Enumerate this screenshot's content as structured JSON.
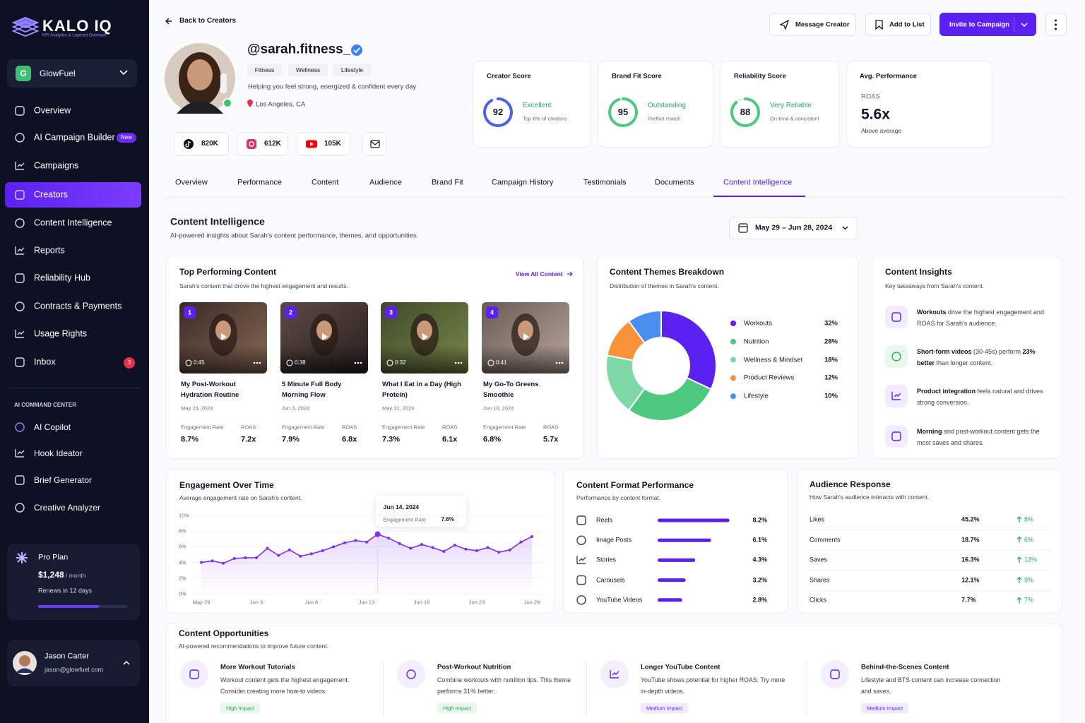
{
  "sidebar": {
    "brand": "KALO IQ",
    "tagline": "KPI Analytics & Layered Outreach",
    "workspace": {
      "initial": "G",
      "name": "GlowFuel"
    },
    "nav": [
      {
        "label": "Overview"
      },
      {
        "label": "AI Campaign Builder",
        "badge": "New"
      },
      {
        "label": "Campaigns"
      },
      {
        "label": "Creators",
        "active": true
      },
      {
        "label": "Content Intelligence"
      },
      {
        "label": "Reports"
      },
      {
        "label": "Reliability Hub"
      },
      {
        "label": "Contracts & Payments"
      },
      {
        "label": "Usage Rights"
      },
      {
        "label": "Inbox",
        "count": 3
      }
    ],
    "section_title": "AI COMMAND CENTER",
    "tools": [
      "AI Copilot",
      "Hook Ideator",
      "Brief Generator",
      "Creative Analyzer"
    ],
    "plan": {
      "name": "Pro Plan",
      "price": "$1,248",
      "period": "/ month",
      "renews": "Renews in 12 days"
    },
    "user": {
      "name": "Jason Carter",
      "email": "jason@glowfuel.com"
    }
  },
  "header": {
    "back": "Back to Creators",
    "message": "Message Creator",
    "add": "Add to List",
    "invite": "Invite to Campaign"
  },
  "profile": {
    "handle": "@sarah.fitness_",
    "tags": [
      "Fitness",
      "Wellness",
      "Lifestyle"
    ],
    "bio": "Helping you feel strong, energized & confident every day",
    "location": "Los Angeles, CA",
    "followers": [
      "820K",
      "612K",
      "105K"
    ]
  },
  "scores": [
    {
      "title": "Creator Score",
      "value": 92,
      "label": "Excellent",
      "note": "Top 8% of creators",
      "color": "#4b63e8"
    },
    {
      "title": "Brand Fit Score",
      "value": 95,
      "label": "Outstanding",
      "note": "Perfect match",
      "color": "#4cc97f"
    },
    {
      "title": "Reliability Score",
      "value": 88,
      "label": "Very Reliable",
      "note": "On-time & consistent",
      "color": "#4cc97f"
    }
  ],
  "avg_performance": {
    "title": "Avg. Performance",
    "metric": "ROAS",
    "value": "5.6x",
    "note": "Above average"
  },
  "tabs": {
    "items": [
      "Overview",
      "Performance",
      "Content",
      "Audience",
      "Brand Fit",
      "Campaign History",
      "Testimonials",
      "Documents",
      "Content Intelligence"
    ],
    "active": 8
  },
  "section": {
    "title": "Content Intelligence",
    "subtitle": "AI-powered insights about Sarah's content performance, themes, and opportunities.",
    "date_range": "May 29 – Jun 28, 2024"
  },
  "top_content": {
    "title": "Top Performing Content",
    "subtitle": "Sarah's content that drove the highest engagement and results.",
    "link": "View All Content",
    "metric_labels": [
      "Engagement Rate",
      "ROAS"
    ],
    "items": [
      {
        "rank": 1,
        "duration": "0:45",
        "title": "My Post-Workout Hydration Routine",
        "date": "May 24, 2024",
        "engagement": "8.7%",
        "roas": "7.2x"
      },
      {
        "rank": 2,
        "duration": "0:38",
        "title": "5 Minute Full Body Morning Flow",
        "date": "Jun 3, 2024",
        "engagement": "7.9%",
        "roas": "6.8x"
      },
      {
        "rank": 3,
        "duration": "0:32",
        "title": "What I Eat in a Day (High Protein)",
        "date": "May 31, 2024",
        "engagement": "7.3%",
        "roas": "6.1x"
      },
      {
        "rank": 4,
        "duration": "0:41",
        "title": "My Go-To Greens Smoothie",
        "date": "Jun 10, 2024",
        "engagement": "6.8%",
        "roas": "5.7x"
      }
    ]
  },
  "themes": {
    "type": "pie",
    "title": "Content Themes Breakdown",
    "subtitle": "Distribution of themes in Sarah's content.",
    "categories": [
      "Workouts",
      "Nutrition",
      "Wellness & Mindset",
      "Product Reviews",
      "Lifestyle"
    ],
    "values": [
      32,
      28,
      18,
      12,
      10
    ],
    "value_labels": [
      "32%",
      "28%",
      "18%",
      "12%",
      "10%"
    ],
    "colors": [
      "#5b21f0",
      "#4cc97f",
      "#7fd8a8",
      "#f7923a",
      "#4a8ff0"
    ]
  },
  "insights": {
    "title": "Content Insights",
    "subtitle": "Key takeaways from Sarah's content.",
    "items": [
      [
        "Workouts",
        " drive the highest engagement and ROAS for Sarah's audience."
      ],
      [
        "Short-form videos",
        " (30-45s) perform ",
        "23% better",
        " than longer content."
      ],
      [
        "Product integration",
        " feels natural and drives strong conversion."
      ],
      [
        "Morning",
        " and post-workout content gets the most saves and shares."
      ]
    ]
  },
  "engagement": {
    "type": "line",
    "title": "Engagement Over Time",
    "subtitle": "Average engagement rate on Sarah's content.",
    "color": "#7b2ff0",
    "categories": [
      "May 29",
      null,
      null,
      null,
      null,
      "Jun 3",
      null,
      null,
      null,
      null,
      "Jun 8",
      null,
      null,
      null,
      null,
      "Jun 13",
      null,
      null,
      null,
      null,
      "Jun 18",
      null,
      null,
      null,
      null,
      "Jun 23",
      null,
      null,
      null,
      null,
      "Jun 28"
    ],
    "values": [
      4.0,
      4.2,
      3.9,
      4.5,
      4.6,
      4.6,
      5.8,
      4.9,
      5.6,
      4.8,
      5.1,
      5.5,
      6.0,
      6.5,
      6.8,
      6.6,
      7.6,
      7.1,
      6.4,
      5.8,
      6.3,
      5.9,
      5.4,
      6.2,
      5.7,
      5.5,
      5.9,
      5.3,
      5.6,
      6.6,
      7.3
    ],
    "ylim": [
      0,
      10
    ],
    "yticks": [
      {
        "value": 0,
        "label": "0%"
      },
      {
        "value": 2,
        "label": "2%"
      },
      {
        "value": 4,
        "label": "4%"
      },
      {
        "value": 6,
        "label": "6%"
      },
      {
        "value": 8,
        "label": "8%"
      },
      {
        "value": 10,
        "label": "10%"
      }
    ],
    "highlight": 16,
    "tooltip": {
      "date": "Jun 14, 2024",
      "label": "Engagement Rate",
      "value_label": "7.6%"
    }
  },
  "formats": {
    "type": "bar",
    "title": "Content Format Performance",
    "subtitle": "Performance by content format.",
    "categories": [
      "Reels",
      "Image Posts",
      "Stories",
      "Carousels",
      "YouTube Videos"
    ],
    "values": [
      8.2,
      6.1,
      4.3,
      3.2,
      2.8
    ],
    "value_labels": [
      "8.2%",
      "6.1%",
      "4.3%",
      "3.2%",
      "2.8%"
    ],
    "xlim": [
      0,
      10
    ],
    "color": "#5b21f0"
  },
  "audience": {
    "title": "Audience Response",
    "subtitle": "How Sarah's audience interacts with content.",
    "rows": [
      [
        "Likes",
        "45.2%",
        "8%"
      ],
      [
        "Comments",
        "18.7%",
        "6%"
      ],
      [
        "Saves",
        "16.3%",
        "12%"
      ],
      [
        "Shares",
        "12.1%",
        "9%"
      ],
      [
        "Clicks",
        "7.7%",
        "7%"
      ]
    ]
  },
  "opportunities": {
    "title": "Content Opportunities",
    "subtitle": "AI-powered recommendations to improve future content.",
    "items": [
      {
        "title": "More Workout Tutorials",
        "text": "Workout content gets the highest engagement. Consider creating more how-to videos.",
        "impact": "High Impact"
      },
      {
        "title": "Post-Workout Nutrition",
        "text": "Combine workouts with nutrition tips. This theme performs 31% better.",
        "impact": "High Impact"
      },
      {
        "title": "Longer YouTube Content",
        "text": "YouTube shows potential for higher ROAS. Try more in-depth videos.",
        "impact": "Medium Impact"
      },
      {
        "title": "Behind-the-Scenes Content",
        "text": "Lifestyle and BTS content can increase connection and saves.",
        "impact": "Medium Impact"
      }
    ]
  }
}
